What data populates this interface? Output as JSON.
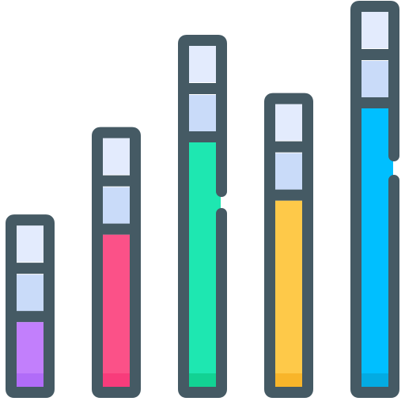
{
  "icon": {
    "name": "bar-chart-icon",
    "outline_color": "#455a64",
    "block_top_color": "#e3ebfd",
    "block_mid_color": "#c9dbf9",
    "bars": [
      {
        "name": "bar-1",
        "fill": "#c27ffc",
        "base": "#b16cf8",
        "level": 0.12
      },
      {
        "name": "bar-2",
        "fill": "#fb5188",
        "base": "#f83c7b",
        "level": 0.48
      },
      {
        "name": "bar-3",
        "fill": "#1ee7b1",
        "base": "#12d293",
        "level": 0.86
      },
      {
        "name": "bar-4",
        "fill": "#fec949",
        "base": "#f8b52a",
        "level": 0.62
      },
      {
        "name": "bar-5",
        "fill": "#00bfff",
        "base": "#03abe2",
        "level": 1.0
      }
    ]
  }
}
